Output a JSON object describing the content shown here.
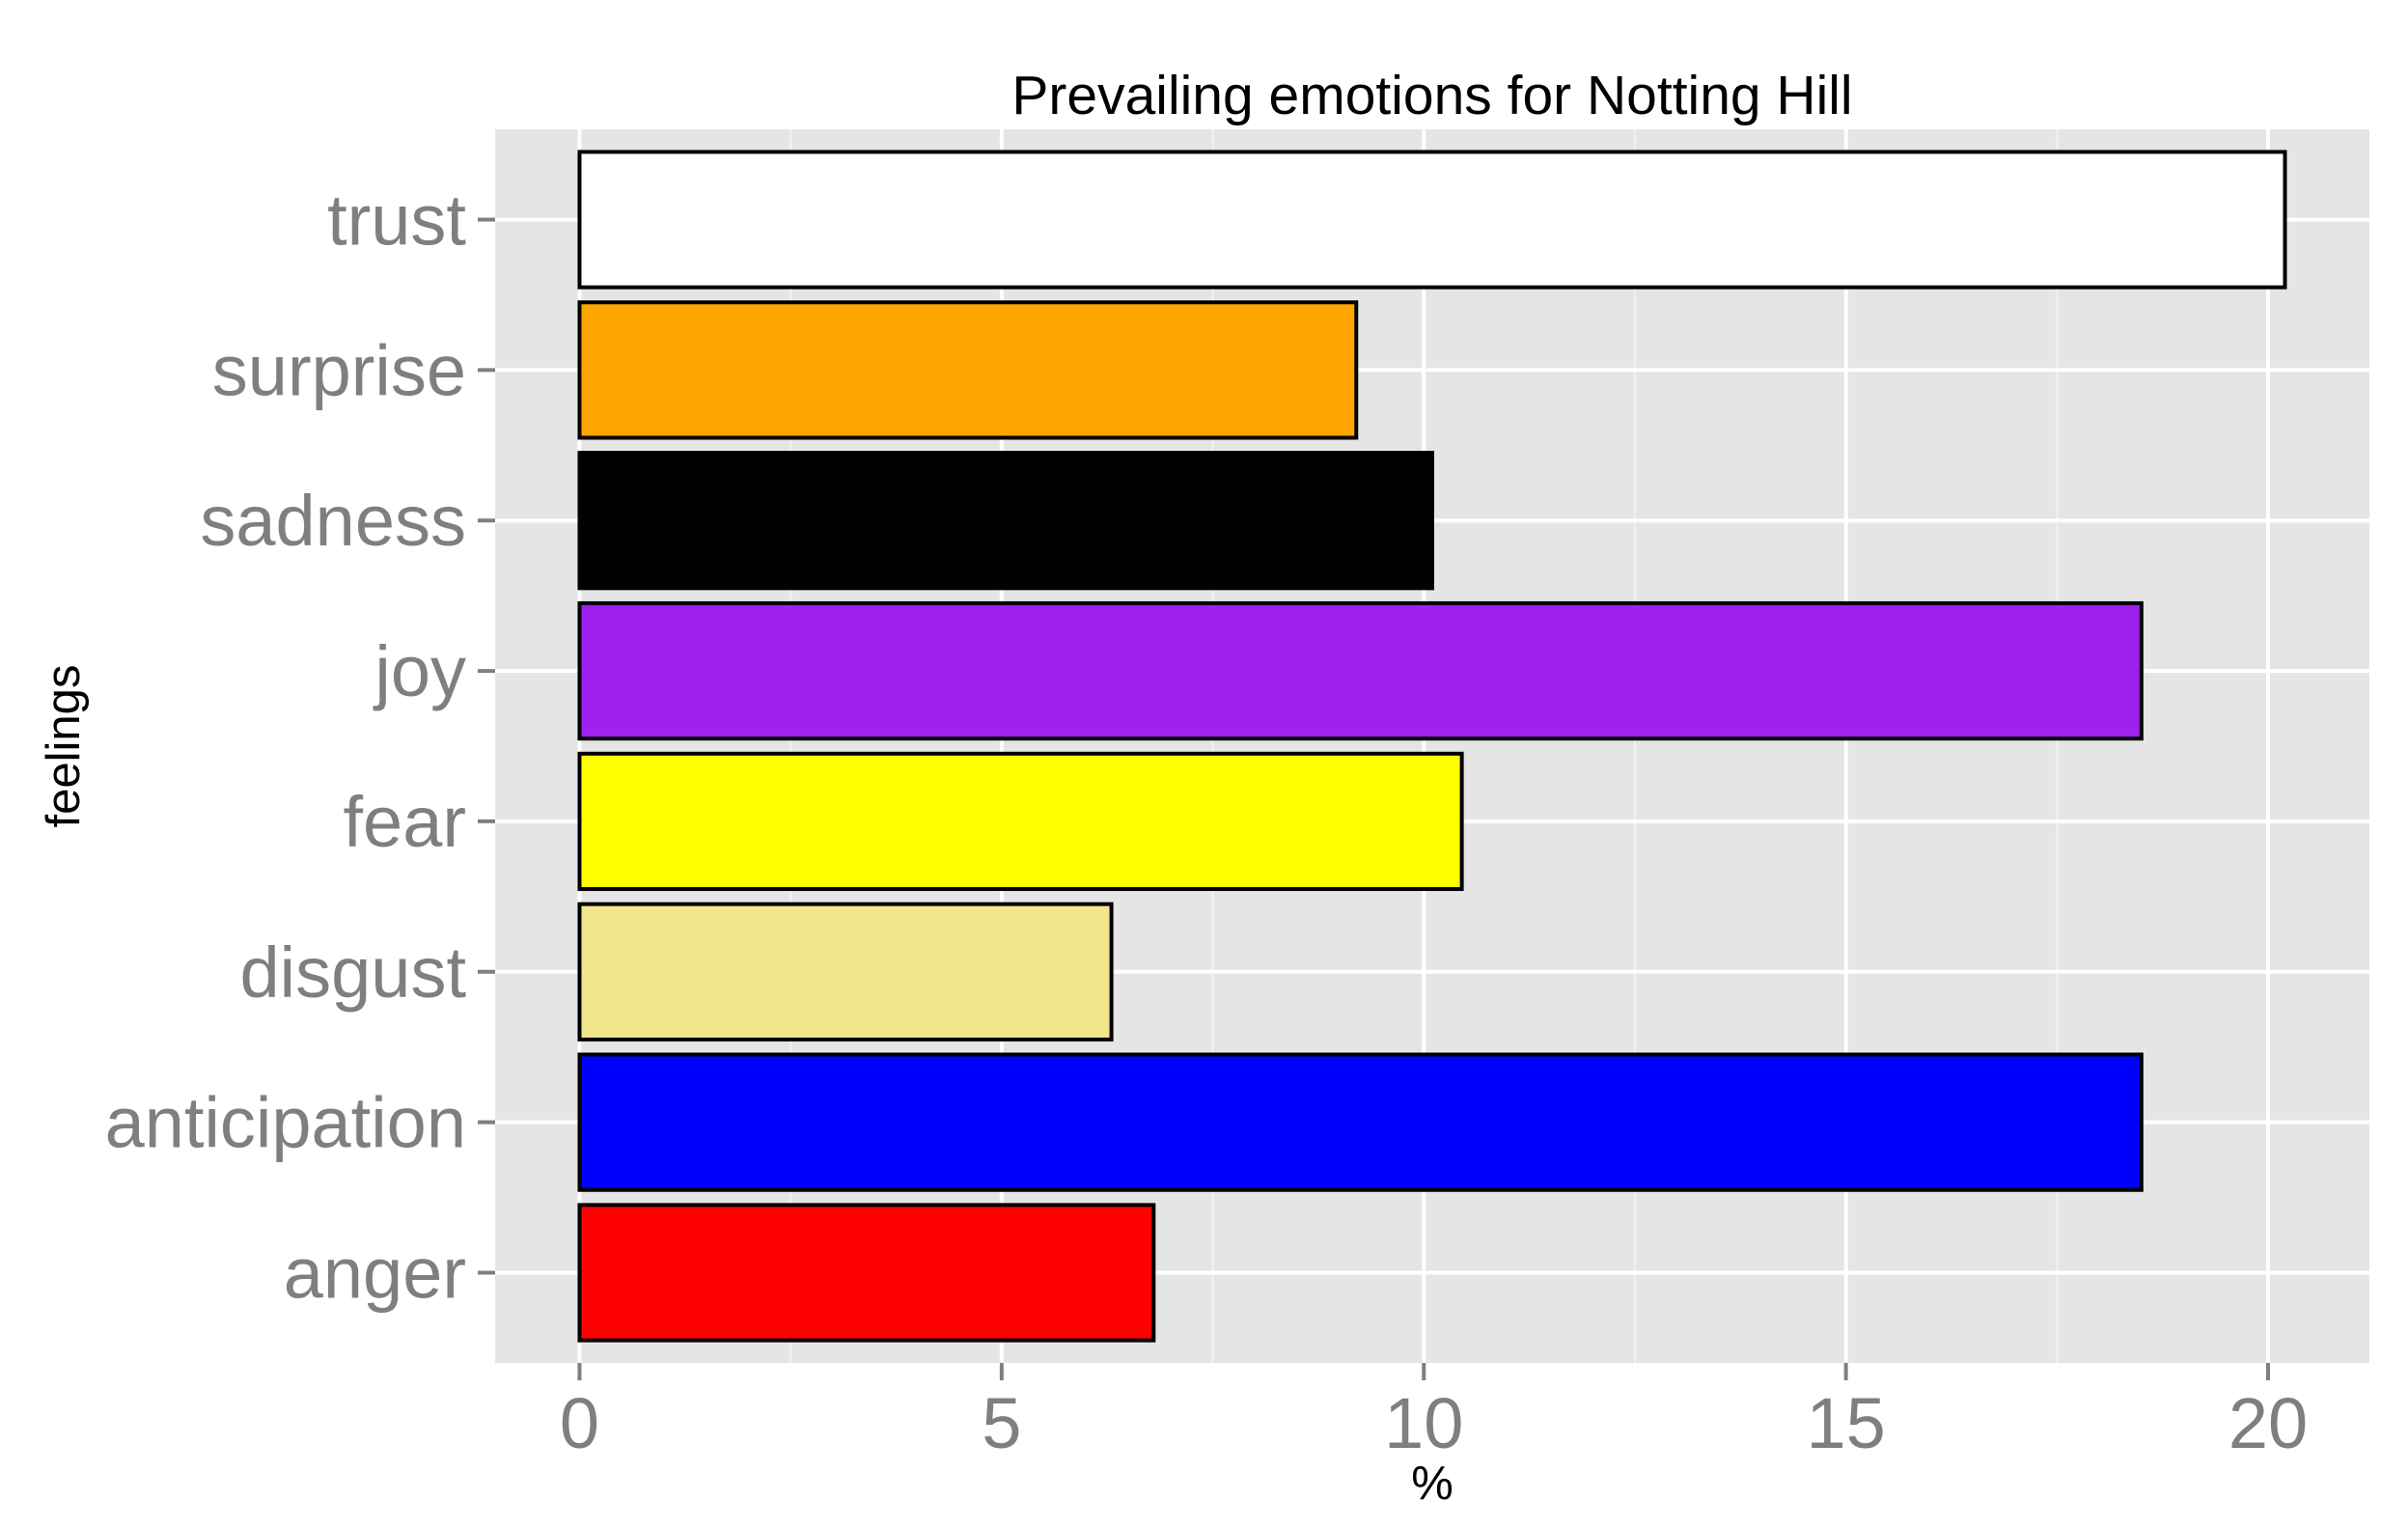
{
  "chart_data": {
    "type": "bar",
    "orientation": "horizontal",
    "title": "Prevailing emotions for Notting Hill",
    "xlabel": "%",
    "ylabel": "feelings",
    "categories": [
      "anger",
      "anticipation",
      "disgust",
      "fear",
      "joy",
      "sadness",
      "surprise",
      "trust"
    ],
    "values": [
      6.8,
      18.5,
      6.3,
      10.45,
      18.5,
      10.1,
      9.2,
      20.2
    ],
    "colors": [
      "#ff0000",
      "#0000ff",
      "#f0e68c",
      "#ffff00",
      "#a020f0",
      "#000000",
      "#ffa500",
      "#ffffff"
    ],
    "xlim": [
      -1,
      21.2
    ],
    "xticks": [
      0,
      5,
      10,
      15,
      20
    ],
    "xtick_labels": [
      "0",
      "5",
      "10",
      "15",
      "20"
    ],
    "grid": true,
    "panel_background": "#e5e5e5",
    "grid_color": "#ffffff",
    "bar_outline": "#000000",
    "legend": "none"
  }
}
